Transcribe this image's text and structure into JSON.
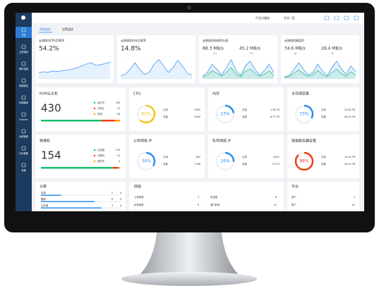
{
  "menu": [
    "产品与服务",
    "华北一区"
  ],
  "sidebar": [
    "总览",
    "云资源池",
    "硬件设施",
    "网络服务",
    "资源编排",
    "vCenter",
    "运维管理",
    "平台管理",
    "设置"
  ],
  "tabs": [
    "资源监控",
    "告警监控"
  ],
  "trend_cards": [
    {
      "title": "云物理机CPU负载率",
      "readings": [
        {
          "text": "54.2%"
        }
      ],
      "series": [
        {
          "color": "#2d8cf0",
          "values": [
            20,
            22,
            21,
            24,
            23,
            26,
            28,
            30,
            34,
            40,
            46,
            50,
            42,
            44,
            48,
            52
          ]
        }
      ]
    },
    {
      "title": "云物理机内存负载率",
      "readings": [
        {
          "text": "14.8%"
        }
      ],
      "series": [
        {
          "color": "#2d8cf0",
          "values": [
            10,
            14,
            30,
            50,
            30,
            14,
            20,
            45,
            60,
            42,
            20,
            35,
            58,
            40,
            18,
            12
          ]
        }
      ]
    },
    {
      "title": "云物理机网络吞吐量",
      "readings": [
        {
          "text": "88.3 MB/s",
          "sub": "上行"
        },
        {
          "text": "45.2 MB/s",
          "sub": "下行"
        }
      ],
      "series": [
        {
          "color": "#2d8cf0",
          "values": [
            8,
            20,
            45,
            30,
            12,
            35,
            60,
            28,
            10,
            40,
            55,
            30,
            12,
            25,
            45,
            20
          ]
        },
        {
          "color": "#19be6b",
          "values": [
            5,
            12,
            25,
            18,
            8,
            20,
            35,
            16,
            6,
            24,
            30,
            18,
            8,
            15,
            25,
            10
          ]
        }
      ]
    },
    {
      "title": "云物理机磁盘IO",
      "readings": [
        {
          "text": "34.6 MB/s",
          "sub": "读"
        },
        {
          "text": "28.4 MB/s",
          "sub": "写"
        }
      ],
      "series": [
        {
          "color": "#2d8cf0",
          "values": [
            6,
            10,
            30,
            50,
            30,
            12,
            20,
            45,
            25,
            10,
            35,
            55,
            30,
            14,
            40,
            22
          ]
        },
        {
          "color": "#19be6b",
          "values": [
            4,
            8,
            18,
            28,
            16,
            8,
            12,
            26,
            14,
            6,
            20,
            30,
            16,
            8,
            22,
            12
          ]
        }
      ]
    }
  ],
  "status_cards": [
    {
      "title": "KVM云主机",
      "total": 430,
      "items": [
        {
          "name": "运行中",
          "count": 328,
          "color": "#19be6b"
        },
        {
          "name": "已停止",
          "count": 74,
          "color": "#ed4014"
        },
        {
          "name": "未知",
          "count": 28,
          "color": "#ff9900"
        }
      ]
    },
    {
      "title": "物理机",
      "total": 154,
      "items": [
        {
          "name": "已连接",
          "count": 140,
          "color": "#19be6b"
        },
        {
          "name": "已断开",
          "count": 10,
          "color": "#ed4014"
        },
        {
          "name": "维护中",
          "count": 4,
          "color": "#ff9900"
        }
      ]
    }
  ],
  "gauge_cards": [
    {
      "title": "CPU",
      "value": 62,
      "value_label": "62%",
      "color": "#f5c518",
      "rows": [
        [
          "已用",
          "5600"
        ],
        [
          "总量",
          "9000"
        ]
      ]
    },
    {
      "title": "内存",
      "value": 23,
      "value_label": "23%",
      "color": "#2d8cf0",
      "rows": [
        [
          "已用",
          "1.56 TB"
        ],
        [
          "总量",
          "6.72 TB"
        ]
      ]
    },
    {
      "title": "主存储容量",
      "value": 33,
      "value_label": "33%",
      "color": "#2d8cf0",
      "rows": [
        [
          "已用",
          "32.60 TB"
        ],
        [
          "总量",
          "98.23 TB"
        ]
      ]
    },
    {
      "title": "公有网络 IP",
      "value": 34,
      "value_label": "34%",
      "color": "#2d8cf0",
      "rows": [
        [
          "已用",
          "602"
        ],
        [
          "总量",
          "1768"
        ]
      ]
    },
    {
      "title": "私有网络 IP",
      "value": 26,
      "value_label": "26%",
      "color": "#2d8cf0",
      "rows": [
        [
          "已用",
          "4631"
        ],
        [
          "总量",
          "17710"
        ]
      ]
    },
    {
      "title": "镜像服务器容量",
      "value": 88,
      "value_label": "88%",
      "color": "#ed4014",
      "rows": [
        [
          "已用",
          "14.26 TB"
        ],
        [
          "总量",
          "16.20 TB"
        ]
      ]
    }
  ],
  "compute": {
    "title": "计算",
    "rows": [
      {
        "name": "区域",
        "value": 1,
        "total": 4
      },
      {
        "name": "集群",
        "value": 6,
        "total": 9
      },
      {
        "name": "主存储",
        "value": 3,
        "total": 4
      }
    ]
  },
  "network": {
    "title": "网络",
    "rows": [
      [
        "公有网络",
        "3",
        "安全组",
        "8"
      ],
      [
        "私有网络",
        "6",
        "端口转发",
        "12"
      ]
    ]
  },
  "platform": {
    "title": "平台",
    "rows": [
      [
        "用户",
        "2"
      ],
      [
        "账户",
        "42"
      ]
    ]
  }
}
